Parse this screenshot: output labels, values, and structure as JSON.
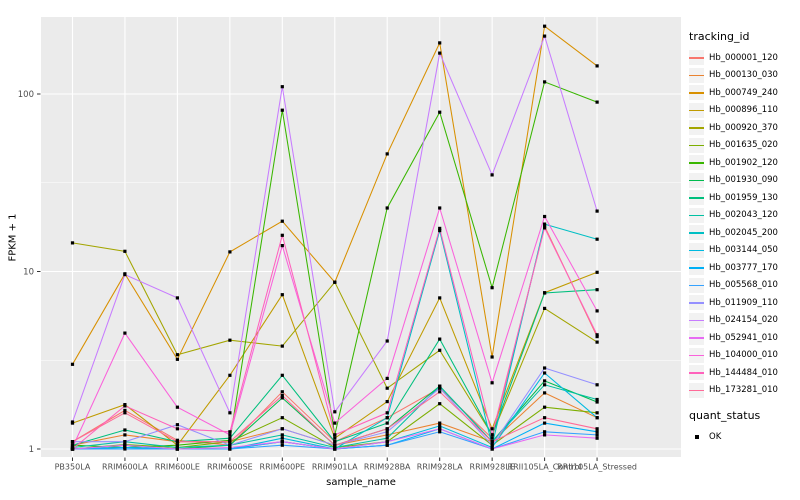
{
  "colors": {
    "panel_bg": "#EBEBEB",
    "grid": "#FFFFFF",
    "tick_mark": "#333333",
    "tick_text": "#4D4D4D",
    "legend_key_bg": "#F2F2F2",
    "point": "#000000"
  },
  "chart_data": {
    "type": "line",
    "title": "",
    "xlabel": "sample_name",
    "ylabel": "FPKM + 1",
    "y_scale": "log10",
    "ylim": [
      0.95,
      280
    ],
    "grid": true,
    "legend_position": "right",
    "legend_title": "tracking_id",
    "point_legend": {
      "title": "quant_status",
      "items": [
        {
          "label": "OK",
          "shape": "filled-square",
          "color": "#000000"
        }
      ]
    },
    "y_ticks": [
      {
        "value": 100,
        "label": "100"
      },
      {
        "value": 10,
        "label": "10"
      },
      {
        "value": 1,
        "label": "1"
      }
    ],
    "y_minor_breaks": [
      3.162,
      31.62
    ],
    "categories": [
      "PB350LA",
      "RRIM600LA",
      "RRIM600LE",
      "RRIM600SE",
      "RRIM600PE",
      "RRIM901LA",
      "RRIM928BA",
      "RRIM928LA",
      "RRIM928LE",
      "RRII105LA_Control",
      "RRII105LA_Stressed"
    ],
    "series": [
      {
        "name": "Hb_000001_120",
        "color": "#F8766D",
        "values": [
          1.1,
          1.65,
          1.12,
          1.05,
          2.1,
          1.1,
          1.5,
          2.2,
          1.15,
          18.0,
          4.3
        ]
      },
      {
        "name": "Hb_000130_030",
        "color": "#EA8331",
        "values": [
          1.05,
          1.2,
          1.1,
          1.1,
          1.3,
          1.05,
          1.2,
          1.4,
          1.1,
          2.07,
          1.5
        ]
      },
      {
        "name": "Hb_000749_240",
        "color": "#D89000",
        "values": [
          3.0,
          9.7,
          3.2,
          12.9,
          19.2,
          8.7,
          46.0,
          194.0,
          3.3,
          241.0,
          144.0
        ]
      },
      {
        "name": "Hb_000896_110",
        "color": "#C09B00",
        "values": [
          1.4,
          1.78,
          1.05,
          2.6,
          7.4,
          1.15,
          1.85,
          7.1,
          1.3,
          7.6,
          9.9
        ]
      },
      {
        "name": "Hb_000920_370",
        "color": "#A3A500",
        "values": [
          14.5,
          13.0,
          3.4,
          4.1,
          3.8,
          8.7,
          2.2,
          3.6,
          1.2,
          6.2,
          4.0
        ]
      },
      {
        "name": "Hb_001635_020",
        "color": "#7CAE00",
        "values": [
          1.0,
          1.06,
          1.02,
          1.1,
          1.5,
          1.02,
          1.1,
          1.8,
          1.05,
          1.72,
          1.6
        ]
      },
      {
        "name": "Hb_001902_120",
        "color": "#39B600",
        "values": [
          1.05,
          1.02,
          1.05,
          1.12,
          81.0,
          1.2,
          22.8,
          79.0,
          8.1,
          117.0,
          90.0
        ]
      },
      {
        "name": "Hb_001930_090",
        "color": "#00BB4E",
        "values": [
          1.0,
          1.05,
          1.0,
          1.05,
          1.94,
          1.05,
          1.3,
          2.26,
          1.1,
          2.42,
          1.84
        ]
      },
      {
        "name": "Hb_001959_130",
        "color": "#00BF7D",
        "values": [
          1.05,
          1.28,
          1.1,
          1.15,
          2.6,
          1.1,
          1.4,
          4.16,
          1.2,
          7.57,
          7.9
        ]
      },
      {
        "name": "Hb_002043_120",
        "color": "#00C1A3",
        "values": [
          1.02,
          1.1,
          1.02,
          1.05,
          1.2,
          1.02,
          1.15,
          2.26,
          1.1,
          2.3,
          1.9
        ]
      },
      {
        "name": "Hb_002045_200",
        "color": "#00BFC4",
        "values": [
          1.0,
          1.05,
          1.0,
          1.0,
          1.1,
          1.0,
          1.5,
          17.0,
          1.05,
          18.5,
          15.2
        ]
      },
      {
        "name": "Hb_003144_050",
        "color": "#00BAE0",
        "values": [
          1.0,
          1.02,
          1.0,
          1.0,
          1.15,
          1.0,
          1.1,
          1.35,
          1.02,
          2.68,
          1.5
        ]
      },
      {
        "name": "Hb_003777_170",
        "color": "#00B0F6",
        "values": [
          1.0,
          1.02,
          1.0,
          1.0,
          1.1,
          1.0,
          1.05,
          1.3,
          1.0,
          1.4,
          1.25
        ]
      },
      {
        "name": "Hb_005568_010",
        "color": "#35A2FF",
        "values": [
          1.0,
          1.0,
          1.0,
          1.0,
          1.05,
          1.0,
          1.05,
          1.25,
          1.0,
          1.25,
          1.2
        ]
      },
      {
        "name": "Hb_011909_110",
        "color": "#9590FF",
        "values": [
          1.1,
          1.1,
          1.37,
          1.05,
          1.3,
          1.05,
          1.25,
          2.2,
          1.05,
          2.86,
          2.3
        ]
      },
      {
        "name": "Hb_024154_020",
        "color": "#C77CFF",
        "values": [
          1.42,
          9.6,
          7.1,
          1.6,
          110.0,
          1.62,
          4.06,
          170.0,
          35.0,
          212.0,
          21.9
        ]
      },
      {
        "name": "Hb_052941_010",
        "color": "#E76BF3",
        "values": [
          1.0,
          1.05,
          1.0,
          1.02,
          1.1,
          1.0,
          1.1,
          1.3,
          1.0,
          1.2,
          1.15
        ]
      },
      {
        "name": "Hb_104000_010",
        "color": "#FA62DB",
        "values": [
          1.02,
          4.5,
          1.72,
          1.2,
          14.0,
          1.4,
          2.5,
          22.8,
          2.36,
          20.4,
          6.0
        ]
      },
      {
        "name": "Hb_144484_010",
        "color": "#FF62BC",
        "values": [
          1.0,
          1.75,
          1.3,
          1.25,
          16.0,
          1.2,
          1.6,
          17.5,
          1.2,
          17.6,
          4.4
        ]
      },
      {
        "name": "Hb_173281_010",
        "color": "#FF6A98",
        "values": [
          1.1,
          1.6,
          1.1,
          1.1,
          2.0,
          1.05,
          1.3,
          2.1,
          1.1,
          1.5,
          1.3
        ]
      }
    ]
  }
}
